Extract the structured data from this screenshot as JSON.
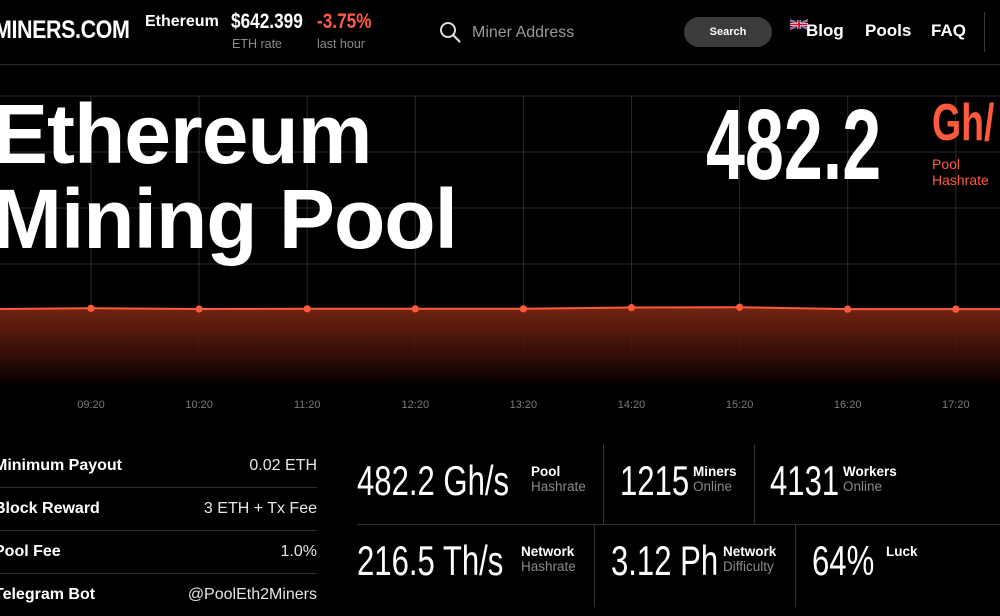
{
  "header": {
    "logo": "MINERS.COM",
    "coin_name": "Ethereum",
    "rate_value": "$642.399",
    "rate_label": "ETH rate",
    "change_value": "-3.75%",
    "change_label": "last hour",
    "search": {
      "placeholder": "Miner Address",
      "button_label": "Search"
    },
    "nav": [
      {
        "label": "Blog"
      },
      {
        "label": "Pools"
      },
      {
        "label": "FAQ"
      }
    ],
    "icons": {
      "search": "search-icon",
      "flag": "uk-flag-icon"
    }
  },
  "hero": {
    "title_line1": "Ethereum",
    "title_line2": "Mining Pool",
    "hashrate_value": "482.2",
    "hashrate_unit": "Gh/",
    "hashrate_label_line1": "Pool",
    "hashrate_label_line2": "Hashrate"
  },
  "chart_data": {
    "type": "area",
    "title": "",
    "xlabel": "",
    "ylabel": "",
    "x": [
      "09:20",
      "10:20",
      "11:20",
      "12:20",
      "13:20",
      "14:20",
      "15:20",
      "16:20",
      "17:20"
    ],
    "series": [
      {
        "values": [
          482,
          478,
          479,
          479,
          479,
          487,
          489,
          477,
          477
        ]
      }
    ],
    "ylim": [
      0,
      1800
    ],
    "grid": true,
    "accent_color": "#ff5a3c"
  },
  "info": [
    {
      "label": "Minimum Payout",
      "value": "0.02 ETH"
    },
    {
      "label": "Block Reward",
      "value": "3 ETH + Tx Fee"
    },
    {
      "label": "Pool Fee",
      "value": "1.0%"
    },
    {
      "label": "Telegram Bot",
      "value": "@PoolEth2Miners"
    }
  ],
  "stats": {
    "pool_hashrate": {
      "value": "482.2 Gh/s",
      "label": "Pool",
      "sub": "Hashrate"
    },
    "miners": {
      "value": "1215",
      "label": "Miners",
      "sub": "Online"
    },
    "workers": {
      "value": "4131",
      "label": "Workers",
      "sub": "Online"
    },
    "network_hashrate": {
      "value": "216.5 Th/s",
      "label": "Network",
      "sub": "Hashrate"
    },
    "network_difficulty": {
      "value": "3.12 Ph",
      "label": "Network",
      "sub": "Difficulty"
    },
    "luck": {
      "value": "64%",
      "label": "Luck"
    }
  }
}
